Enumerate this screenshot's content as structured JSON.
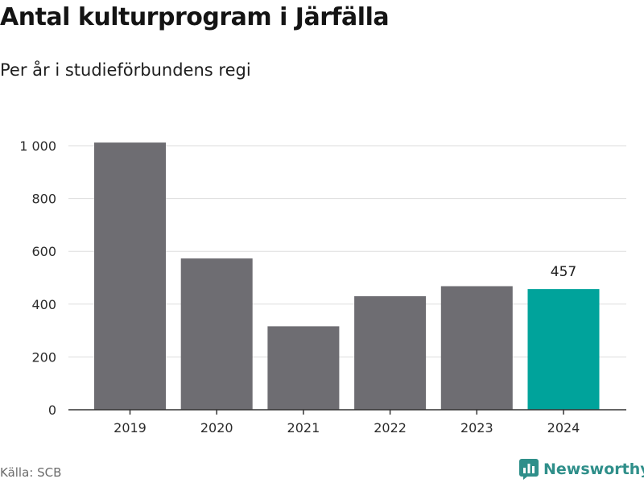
{
  "title": "Antal kulturprogram i Järfälla",
  "subtitle": "Per år i studieförbundens regi",
  "source": "Källa: SCB",
  "brand": {
    "name": "Newsworthy",
    "icon": "newsworthy-logo-icon"
  },
  "colors": {
    "bar": "#6e6d72",
    "highlight": "#00a39b",
    "grid": "#dddddd",
    "axis": "#333333",
    "brand": "#2f8f8a"
  },
  "chart_data": {
    "type": "bar",
    "categories": [
      "2019",
      "2020",
      "2021",
      "2022",
      "2023",
      "2024"
    ],
    "values": [
      1012,
      573,
      316,
      430,
      468,
      457
    ],
    "highlight_index": 5,
    "data_labels": [
      {
        "index": 5,
        "text": "457"
      }
    ],
    "y_ticks": [
      0,
      200,
      400,
      600,
      800,
      1000
    ],
    "y_tick_labels": [
      "0",
      "200",
      "400",
      "600",
      "800",
      "1 000"
    ],
    "ylim": [
      0,
      1000
    ],
    "grid": true,
    "legend": "none",
    "xlabel": "",
    "ylabel": ""
  }
}
